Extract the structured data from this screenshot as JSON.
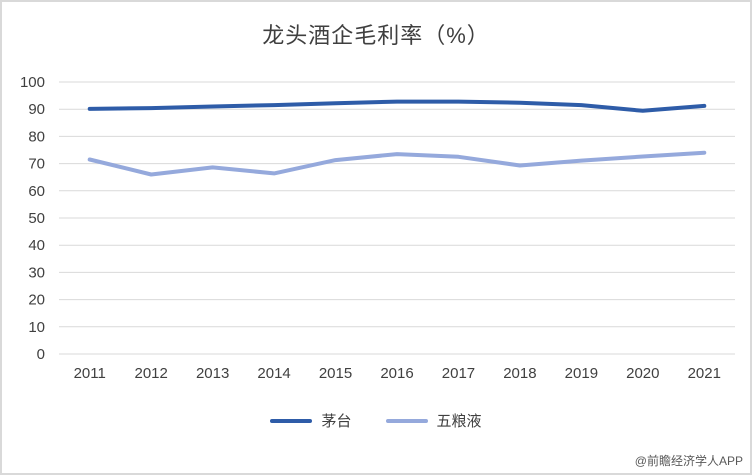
{
  "chart_data": {
    "type": "line",
    "title": "龙头酒企毛利率（%）",
    "categories": [
      "2011",
      "2012",
      "2013",
      "2014",
      "2015",
      "2016",
      "2017",
      "2018",
      "2019",
      "2020",
      "2021"
    ],
    "series": [
      {
        "name": "茅台",
        "color": "#2E5CA8",
        "values": [
          90.1,
          90.4,
          91.0,
          91.5,
          92.2,
          92.8,
          92.8,
          92.4,
          91.5,
          89.4,
          91.2
        ]
      },
      {
        "name": "五粮液",
        "color": "#95A9DC",
        "values": [
          71.5,
          66.0,
          68.6,
          66.4,
          71.3,
          73.5,
          72.5,
          69.3,
          71.1,
          72.6,
          74.0
        ]
      }
    ],
    "xlabel": "",
    "ylabel": "",
    "ylim": [
      0,
      100
    ],
    "y_tick_step": 10,
    "grid": "horizontal",
    "legend_position": "bottom"
  },
  "watermark": {
    "text": "@前瞻经济学人APP"
  },
  "style": {
    "grid_color": "#d9d9d9",
    "axis_text_color": "#404040",
    "title_color": "#3f3f3f",
    "border_color": "#d9d9d9",
    "line_width": 4
  }
}
